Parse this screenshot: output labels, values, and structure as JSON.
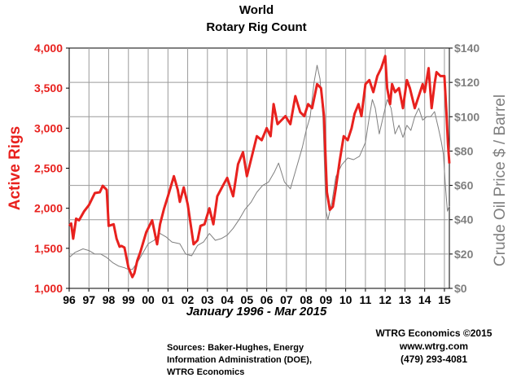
{
  "chart_data": {
    "type": "line",
    "title": "World",
    "subtitle": "Rotary Rig Count",
    "xlabel": "January 1996 - Mar 2015",
    "ylabel_left": "Active Rigs",
    "ylabel_right": "Crude Oil Price $ / Barrel",
    "x_ticks": [
      "96",
      "97",
      "98",
      "99",
      "00",
      "01",
      "02",
      "03",
      "04",
      "05",
      "06",
      "07",
      "08",
      "09",
      "10",
      "11",
      "12",
      "13",
      "14",
      "15"
    ],
    "y_left_ticks": [
      "1,000",
      "1,500",
      "2,000",
      "2,500",
      "3,000",
      "3,500",
      "4,000"
    ],
    "y_right_ticks": [
      "$0",
      "$20",
      "$40",
      "$60",
      "$80",
      "$100",
      "$120",
      "$140"
    ],
    "ylim_left": [
      1000,
      4000
    ],
    "ylim_right": [
      0,
      140
    ],
    "xlim": [
      1996.0,
      2015.25
    ],
    "grid": true,
    "colors": {
      "rigs": "#e8211e",
      "oil": "#7f7f7f"
    },
    "series": [
      {
        "axis": "left",
        "x": [
          1996.0,
          1996.1,
          1996.2,
          1996.35,
          1996.5,
          1996.75,
          1997.0,
          1997.3,
          1997.55,
          1997.7,
          1997.9,
          1998.0,
          1998.25,
          1998.4,
          1998.55,
          1998.65,
          1998.8,
          1999.0,
          1999.2,
          1999.3,
          1999.45,
          1999.6,
          1999.9,
          2000.2,
          2000.45,
          2000.6,
          2000.8,
          2001.0,
          2001.3,
          2001.5,
          2001.6,
          2001.8,
          2002.0,
          2002.3,
          2002.5,
          2002.65,
          2002.85,
          2003.1,
          2003.3,
          2003.5,
          2003.65,
          2003.8,
          2004.0,
          2004.3,
          2004.55,
          2004.8,
          2005.0,
          2005.25,
          2005.5,
          2005.75,
          2006.0,
          2006.2,
          2006.35,
          2006.55,
          2006.75,
          2006.95,
          2007.2,
          2007.45,
          2007.7,
          2007.9,
          2008.1,
          2008.3,
          2008.55,
          2008.75,
          2008.9,
          2009.05,
          2009.2,
          2009.35,
          2009.5,
          2009.7,
          2009.9,
          2010.1,
          2010.3,
          2010.45,
          2010.65,
          2010.8,
          2011.0,
          2011.2,
          2011.4,
          2011.6,
          2011.8,
          2012.0,
          2012.1,
          2012.25,
          2012.35,
          2012.5,
          2012.7,
          2012.9,
          2013.1,
          2013.25,
          2013.5,
          2013.7,
          2013.9,
          2014.0,
          2014.2,
          2014.35,
          2014.5,
          2014.6,
          2014.8,
          2015.0,
          2015.1,
          2015.18,
          2015.25
        ],
        "values": [
          1780,
          1810,
          1620,
          1870,
          1850,
          1960,
          2040,
          2190,
          2200,
          2280,
          2230,
          1780,
          1800,
          1620,
          1520,
          1530,
          1510,
          1260,
          1140,
          1190,
          1350,
          1450,
          1700,
          1850,
          1550,
          1800,
          1990,
          2150,
          2400,
          2230,
          2080,
          2260,
          2050,
          1550,
          1600,
          1780,
          1800,
          2000,
          1800,
          2150,
          2220,
          2290,
          2380,
          2150,
          2550,
          2700,
          2400,
          2650,
          2900,
          2850,
          3000,
          2900,
          3300,
          3050,
          3100,
          3150,
          3050,
          3400,
          3200,
          3150,
          3300,
          3250,
          3550,
          3500,
          3150,
          2200,
          1980,
          2020,
          2250,
          2600,
          2900,
          2850,
          3000,
          3180,
          3300,
          3150,
          3550,
          3600,
          3450,
          3650,
          3750,
          3900,
          3500,
          3300,
          3550,
          3450,
          3500,
          3250,
          3600,
          3500,
          3250,
          3400,
          3550,
          3450,
          3750,
          3250,
          3550,
          3700,
          3650,
          3650,
          3200,
          2800,
          2560
        ]
      },
      {
        "axis": "right",
        "x": [
          1996.0,
          1996.3,
          1996.7,
          1997.0,
          1997.3,
          1997.6,
          1997.9,
          1998.2,
          1998.5,
          1998.8,
          1999.0,
          1999.2,
          1999.5,
          1999.8,
          2000.0,
          2000.3,
          2000.6,
          2000.9,
          2001.2,
          2001.6,
          2001.9,
          2002.2,
          2002.5,
          2002.8,
          2003.1,
          2003.4,
          2003.7,
          2004.0,
          2004.3,
          2004.6,
          2004.9,
          2005.2,
          2005.5,
          2005.8,
          2006.1,
          2006.4,
          2006.6,
          2006.9,
          2007.2,
          2007.5,
          2007.8,
          2008.0,
          2008.2,
          2008.4,
          2008.55,
          2008.7,
          2008.85,
          2009.0,
          2009.1,
          2009.3,
          2009.5,
          2009.8,
          2010.1,
          2010.4,
          2010.7,
          2011.0,
          2011.2,
          2011.35,
          2011.5,
          2011.7,
          2011.9,
          2012.1,
          2012.3,
          2012.5,
          2012.7,
          2012.9,
          2013.1,
          2013.3,
          2013.5,
          2013.7,
          2013.9,
          2014.1,
          2014.3,
          2014.5,
          2014.7,
          2014.85,
          2014.95,
          2015.05,
          2015.15,
          2015.25
        ],
        "values": [
          18,
          21,
          23,
          22,
          20,
          20,
          18,
          15,
          13,
          12,
          11,
          11,
          16,
          22,
          26,
          28,
          32,
          30,
          27,
          26,
          20,
          19,
          25,
          27,
          32,
          28,
          29,
          31,
          35,
          40,
          46,
          50,
          56,
          60,
          62,
          68,
          73,
          62,
          58,
          70,
          82,
          92,
          100,
          120,
          130,
          122,
          100,
          45,
          40,
          50,
          65,
          72,
          76,
          75,
          77,
          85,
          100,
          110,
          105,
          90,
          100,
          110,
          105,
          90,
          95,
          88,
          95,
          92,
          100,
          105,
          98,
          100,
          100,
          103,
          93,
          85,
          78,
          60,
          45,
          48
        ]
      }
    ]
  }
}
